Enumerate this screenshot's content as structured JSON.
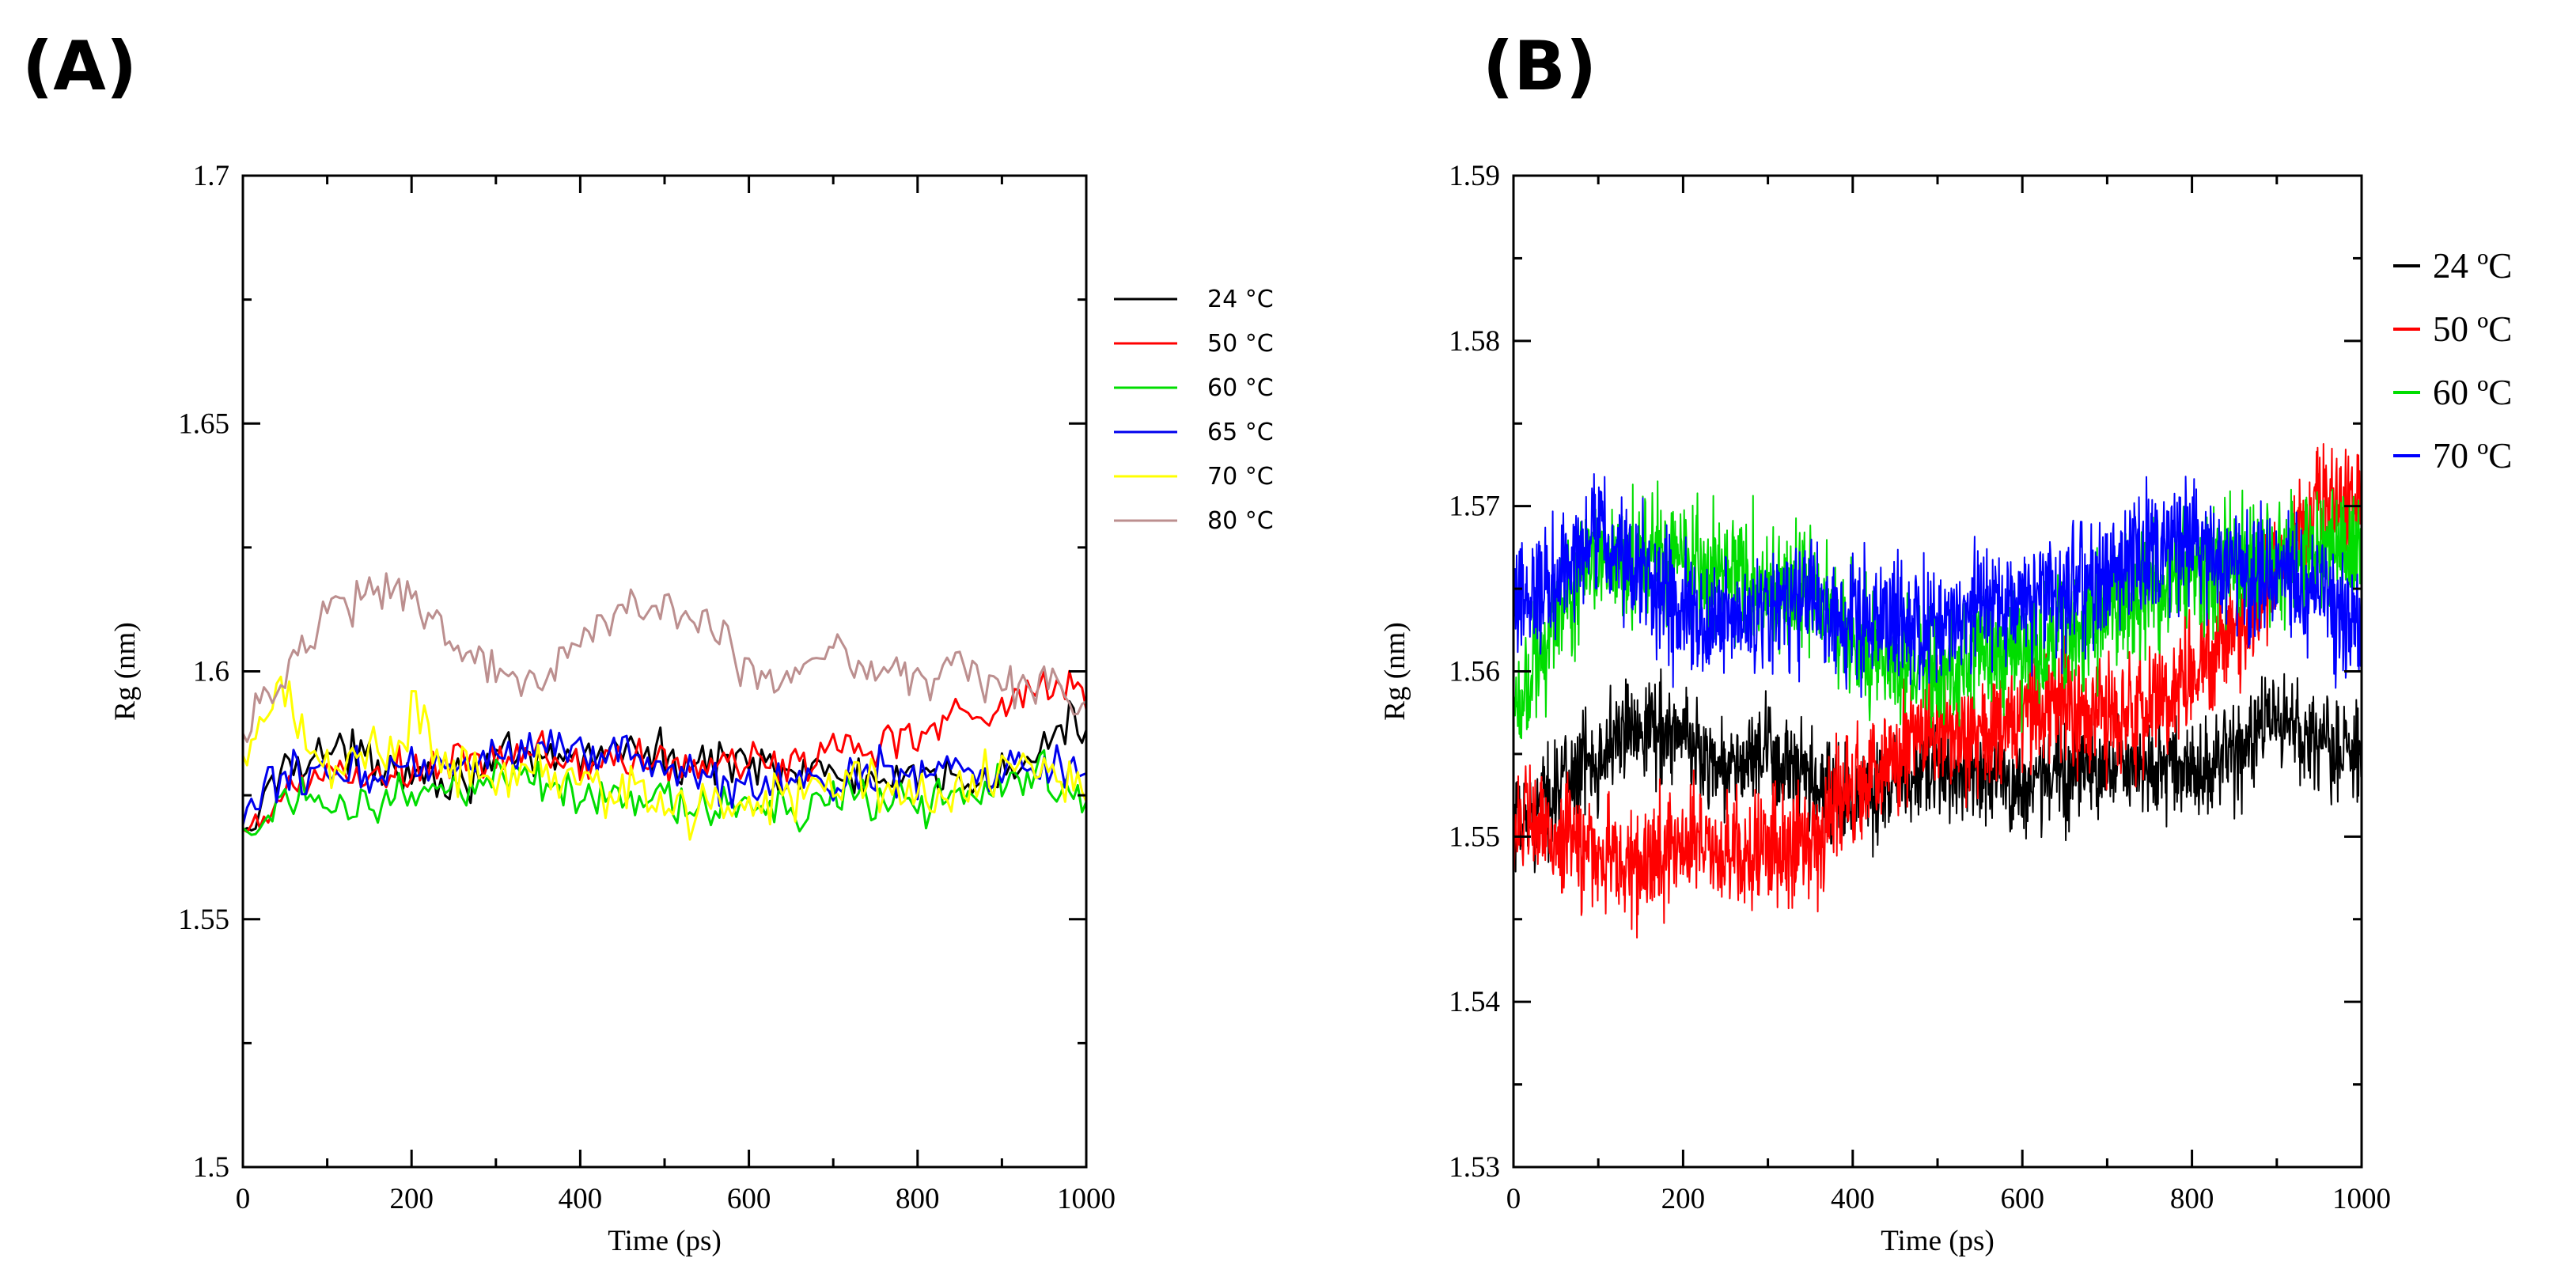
{
  "panel_labels": {
    "a": "(A)",
    "b": "(B)"
  },
  "chart_data": [
    {
      "type": "line",
      "panel": "(A)",
      "xlabel": "Time (ps)",
      "ylabel": "Rg (nm)",
      "xlim": [
        0,
        1000
      ],
      "ylim": [
        1.5,
        1.7
      ],
      "xticks": [
        0,
        200,
        400,
        600,
        800,
        1000
      ],
      "xtick_labels": [
        "0",
        "200",
        "400",
        "600",
        "800",
        "1000"
      ],
      "yticks": [
        1.5,
        1.55,
        1.6,
        1.65,
        1.7
      ],
      "ytick_labels": [
        "1.5",
        "1.55",
        "1.6",
        "1.65",
        "1.7"
      ],
      "legend_position": "right-outside",
      "series": [
        {
          "name": "24 °C",
          "color": "#000000",
          "noise": 0.004,
          "x": [
            0,
            50,
            100,
            150,
            200,
            250,
            300,
            350,
            400,
            450,
            500,
            550,
            600,
            650,
            700,
            750,
            800,
            850,
            900,
            950,
            1000
          ],
          "values": [
            1.565,
            1.582,
            1.584,
            1.582,
            1.581,
            1.578,
            1.582,
            1.581,
            1.583,
            1.585,
            1.582,
            1.581,
            1.583,
            1.58,
            1.579,
            1.578,
            1.577,
            1.579,
            1.578,
            1.585,
            1.59
          ]
        },
        {
          "name": "50 °C",
          "color": "#ff0000",
          "noise": 0.004,
          "x": [
            0,
            50,
            100,
            150,
            200,
            250,
            300,
            350,
            400,
            450,
            500,
            550,
            600,
            650,
            700,
            750,
            800,
            850,
            900,
            950,
            1000
          ],
          "values": [
            1.565,
            1.575,
            1.58,
            1.578,
            1.58,
            1.581,
            1.582,
            1.584,
            1.581,
            1.582,
            1.582,
            1.58,
            1.582,
            1.581,
            1.585,
            1.585,
            1.588,
            1.592,
            1.593,
            1.596,
            1.598
          ]
        },
        {
          "name": "60 °C",
          "color": "#00dd00",
          "noise": 0.004,
          "x": [
            0,
            50,
            100,
            150,
            200,
            250,
            300,
            350,
            400,
            450,
            500,
            550,
            600,
            650,
            700,
            750,
            800,
            850,
            900,
            950,
            1000
          ],
          "values": [
            1.565,
            1.576,
            1.574,
            1.574,
            1.575,
            1.577,
            1.578,
            1.576,
            1.576,
            1.575,
            1.573,
            1.572,
            1.573,
            1.573,
            1.574,
            1.574,
            1.574,
            1.575,
            1.577,
            1.579,
            1.574
          ]
        },
        {
          "name": "65 °C",
          "color": "#0000ee",
          "noise": 0.004,
          "x": [
            0,
            50,
            100,
            150,
            200,
            250,
            300,
            350,
            400,
            450,
            500,
            550,
            600,
            650,
            700,
            750,
            800,
            850,
            900,
            950,
            1000
          ],
          "values": [
            1.57,
            1.58,
            1.579,
            1.58,
            1.582,
            1.58,
            1.583,
            1.585,
            1.584,
            1.582,
            1.581,
            1.578,
            1.577,
            1.577,
            1.578,
            1.579,
            1.58,
            1.579,
            1.579,
            1.581,
            1.579
          ]
        },
        {
          "name": "70 °C",
          "color": "#ffff00",
          "noise": 0.005,
          "x": [
            0,
            50,
            100,
            150,
            200,
            250,
            300,
            350,
            400,
            450,
            500,
            550,
            600,
            650,
            700,
            750,
            800,
            850,
            900,
            950,
            1000
          ],
          "values": [
            1.584,
            1.594,
            1.582,
            1.583,
            1.59,
            1.58,
            1.579,
            1.58,
            1.579,
            1.576,
            1.573,
            1.572,
            1.574,
            1.576,
            1.578,
            1.577,
            1.575,
            1.576,
            1.578,
            1.579,
            1.578
          ]
        },
        {
          "name": "80 °C",
          "color": "#bc8f8f",
          "noise": 0.004,
          "x": [
            0,
            50,
            100,
            150,
            200,
            250,
            300,
            350,
            400,
            450,
            500,
            550,
            600,
            650,
            700,
            750,
            800,
            850,
            900,
            950,
            1000
          ],
          "values": [
            1.588,
            1.598,
            1.613,
            1.615,
            1.617,
            1.605,
            1.6,
            1.598,
            1.606,
            1.613,
            1.612,
            1.61,
            1.6,
            1.597,
            1.606,
            1.6,
            1.599,
            1.6,
            1.596,
            1.597,
            1.592
          ]
        }
      ]
    },
    {
      "type": "line",
      "panel": "(B)",
      "xlabel": "Time (ps)",
      "ylabel": "Rg (nm)",
      "xlim": [
        0,
        1000
      ],
      "ylim": [
        1.53,
        1.59
      ],
      "xticks": [
        0,
        200,
        400,
        600,
        800,
        1000
      ],
      "xtick_labels": [
        "0",
        "200",
        "400",
        "600",
        "800",
        "1000"
      ],
      "yticks": [
        1.53,
        1.54,
        1.55,
        1.56,
        1.57,
        1.58,
        1.59
      ],
      "ytick_labels": [
        "1.53",
        "1.54",
        "1.55",
        "1.56",
        "1.57",
        "1.58",
        "1.59"
      ],
      "legend_position": "right-outside",
      "series": [
        {
          "name": "24 ºC",
          "color": "#000000",
          "noise": 0.0026,
          "x": [
            0,
            50,
            100,
            150,
            200,
            250,
            300,
            350,
            400,
            450,
            500,
            550,
            600,
            650,
            700,
            750,
            800,
            850,
            900,
            950,
            1000
          ],
          "values": [
            1.55,
            1.553,
            1.555,
            1.557,
            1.556,
            1.554,
            1.555,
            1.553,
            1.552,
            1.553,
            1.554,
            1.554,
            1.553,
            1.554,
            1.554,
            1.554,
            1.554,
            1.555,
            1.557,
            1.556,
            1.555
          ]
        },
        {
          "name": "50 ºC",
          "color": "#ff0000",
          "noise": 0.003,
          "x": [
            0,
            50,
            100,
            150,
            200,
            250,
            300,
            350,
            400,
            450,
            500,
            550,
            600,
            650,
            700,
            750,
            800,
            850,
            900,
            950,
            1000
          ],
          "values": [
            1.551,
            1.55,
            1.549,
            1.548,
            1.55,
            1.549,
            1.549,
            1.55,
            1.553,
            1.555,
            1.556,
            1.556,
            1.557,
            1.558,
            1.557,
            1.558,
            1.56,
            1.562,
            1.566,
            1.57,
            1.57
          ]
        },
        {
          "name": "60 ºC",
          "color": "#00dd00",
          "noise": 0.0032,
          "x": [
            0,
            50,
            100,
            150,
            200,
            250,
            300,
            350,
            400,
            450,
            500,
            550,
            600,
            650,
            700,
            750,
            800,
            850,
            900,
            950,
            1000
          ],
          "values": [
            1.558,
            1.563,
            1.567,
            1.567,
            1.566,
            1.566,
            1.565,
            1.565,
            1.562,
            1.561,
            1.56,
            1.561,
            1.561,
            1.562,
            1.564,
            1.565,
            1.567,
            1.566,
            1.567,
            1.567,
            1.568
          ]
        },
        {
          "name": "70 ºC",
          "color": "#0000ff",
          "noise": 0.0032,
          "x": [
            0,
            50,
            100,
            150,
            200,
            250,
            300,
            350,
            400,
            450,
            500,
            550,
            600,
            650,
            700,
            750,
            800,
            850,
            900,
            950,
            1000
          ],
          "values": [
            1.563,
            1.566,
            1.568,
            1.566,
            1.563,
            1.563,
            1.564,
            1.564,
            1.563,
            1.563,
            1.563,
            1.564,
            1.564,
            1.565,
            1.566,
            1.567,
            1.568,
            1.566,
            1.566,
            1.565,
            1.563
          ]
        }
      ]
    }
  ]
}
